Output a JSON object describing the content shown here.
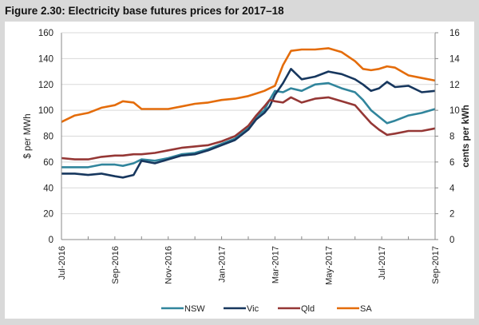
{
  "figure_title": "Figure 2.30: Electricity base futures prices for 2017–18",
  "chart_data": {
    "type": "line",
    "title": "Figure 2.30: Electricity base futures prices for 2017–18",
    "xlabel": "",
    "ylabel": "$ per MWh",
    "y2label": "cents per kWh",
    "ylim": [
      0,
      160
    ],
    "y2lim": [
      0,
      16
    ],
    "yticks": [
      0,
      20,
      40,
      60,
      80,
      100,
      120,
      140,
      160
    ],
    "y2ticks": [
      0,
      2,
      4,
      6,
      8,
      10,
      12,
      14,
      16
    ],
    "x_tick_labels": [
      "Jul-2016",
      "Sep-2016",
      "Nov-2016",
      "Jan-2017",
      "Mar-2017",
      "May-2017",
      "Jul-2017",
      "Sep-2017"
    ],
    "x_unit": "months since Jul-2016",
    "xlim": [
      0,
      14
    ],
    "grid": "horizontal",
    "legend_position": "bottom",
    "series": [
      {
        "name": "NSW",
        "color": "#31859c",
        "x": [
          0,
          0.5,
          1,
          1.5,
          2,
          2.3,
          2.7,
          3,
          3.5,
          4,
          4.5,
          5,
          5.5,
          6,
          6.5,
          7,
          7.3,
          7.6,
          7.8,
          8,
          8.3,
          8.6,
          9,
          9.5,
          10,
          10.5,
          11,
          11.3,
          11.6,
          11.9,
          12.2,
          12.5,
          13,
          13.5,
          14
        ],
        "values": [
          56,
          56,
          56,
          58,
          58,
          57,
          59,
          62,
          61,
          63,
          66,
          67,
          70,
          74,
          78,
          87,
          95,
          100,
          108,
          115,
          114,
          117,
          115,
          120,
          121,
          117,
          114,
          108,
          100,
          95,
          90,
          92,
          96,
          98,
          101
        ]
      },
      {
        "name": "Vic",
        "color": "#17375e",
        "x": [
          0,
          0.5,
          1,
          1.5,
          2,
          2.3,
          2.7,
          3,
          3.5,
          4,
          4.5,
          5,
          5.5,
          6,
          6.5,
          7,
          7.3,
          7.6,
          7.8,
          8,
          8.3,
          8.6,
          9,
          9.5,
          10,
          10.5,
          11,
          11.3,
          11.6,
          11.9,
          12.2,
          12.5,
          13,
          13.5,
          14
        ],
        "values": [
          51,
          51,
          50,
          51,
          49,
          48,
          50,
          61,
          59,
          62,
          65,
          66,
          69,
          73,
          77,
          85,
          93,
          98,
          103,
          112,
          121,
          132,
          124,
          126,
          130,
          128,
          124,
          120,
          115,
          117,
          122,
          118,
          119,
          114,
          115
        ]
      },
      {
        "name": "Qld",
        "color": "#953735",
        "x": [
          0,
          0.5,
          1,
          1.5,
          2,
          2.3,
          2.7,
          3,
          3.5,
          4,
          4.5,
          5,
          5.5,
          6,
          6.5,
          7,
          7.3,
          7.6,
          7.8,
          8,
          8.3,
          8.6,
          9,
          9.5,
          10,
          10.5,
          11,
          11.3,
          11.6,
          11.9,
          12.2,
          12.5,
          13,
          13.5,
          14
        ],
        "values": [
          63,
          62,
          62,
          64,
          65,
          65,
          66,
          66,
          67,
          69,
          71,
          72,
          73,
          76,
          80,
          88,
          96,
          103,
          108,
          107,
          106,
          110,
          106,
          109,
          110,
          107,
          104,
          97,
          90,
          85,
          81,
          82,
          84,
          84,
          86
        ]
      },
      {
        "name": "SA",
        "color": "#e46c0a",
        "x": [
          0,
          0.5,
          1,
          1.5,
          2,
          2.3,
          2.7,
          3,
          3.5,
          4,
          4.5,
          5,
          5.5,
          6,
          6.5,
          7,
          7.3,
          7.6,
          7.8,
          8,
          8.3,
          8.6,
          9,
          9.5,
          10,
          10.5,
          11,
          11.3,
          11.6,
          11.9,
          12.2,
          12.5,
          13,
          13.5,
          14
        ],
        "values": [
          91,
          96,
          98,
          102,
          104,
          107,
          106,
          101,
          101,
          101,
          103,
          105,
          106,
          108,
          109,
          111,
          113,
          115,
          117,
          119,
          135,
          146,
          147,
          147,
          148,
          145,
          138,
          132,
          131,
          132,
          134,
          133,
          127,
          125,
          123
        ]
      }
    ]
  }
}
